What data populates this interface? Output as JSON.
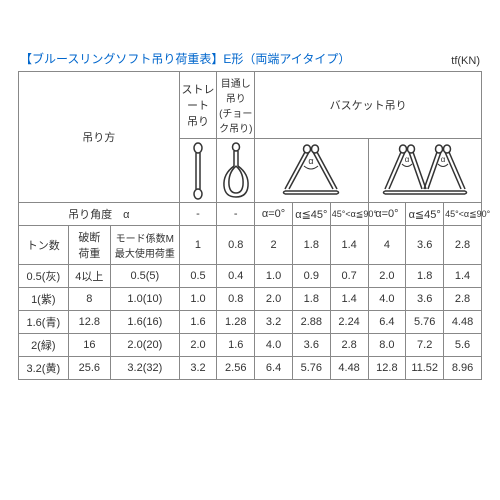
{
  "title": "【ブルースリングソフト吊り荷重表】E形（両端アイタイプ）",
  "unit": "tf(KN)",
  "headers": {
    "method": "吊り方",
    "straight": "ストレート\n吊り",
    "choke": "目通し吊り\n(チョーク吊り)",
    "basket": "バスケット吊り",
    "angle_label": "吊り角度　α",
    "dash": "-",
    "a0": "α=0°",
    "a45": "α≦45°",
    "a90": "45°<α≦90°",
    "ton": "トン数",
    "break": "破断\n荷重",
    "mode": "モード係数M\n最大使用荷重"
  },
  "coef": [
    "1",
    "0.8",
    "2",
    "1.8",
    "1.4",
    "4",
    "3.6",
    "2.8"
  ],
  "rows": [
    {
      "ton": "0.5(灰)",
      "break": "4以上",
      "mode": "0.5(5)",
      "v": [
        "0.5",
        "0.4",
        "1.0",
        "0.9",
        "0.7",
        "2.0",
        "1.8",
        "1.4"
      ]
    },
    {
      "ton": "1(紫)",
      "break": "8",
      "mode": "1.0(10)",
      "v": [
        "1.0",
        "0.8",
        "2.0",
        "1.8",
        "1.4",
        "4.0",
        "3.6",
        "2.8"
      ]
    },
    {
      "ton": "1.6(青)",
      "break": "12.8",
      "mode": "1.6(16)",
      "v": [
        "1.6",
        "1.28",
        "3.2",
        "2.88",
        "2.24",
        "6.4",
        "5.76",
        "4.48"
      ]
    },
    {
      "ton": "2(緑)",
      "break": "16",
      "mode": "2.0(20)",
      "v": [
        "2.0",
        "1.6",
        "4.0",
        "3.6",
        "2.8",
        "8.0",
        "7.2",
        "5.6"
      ]
    },
    {
      "ton": "3.2(黄)",
      "break": "25.6",
      "mode": "3.2(32)",
      "v": [
        "3.2",
        "2.56",
        "6.4",
        "5.76",
        "4.48",
        "12.8",
        "11.52",
        "8.96"
      ]
    }
  ],
  "style": {
    "stroke": "#333333",
    "alpha_label": "α"
  }
}
